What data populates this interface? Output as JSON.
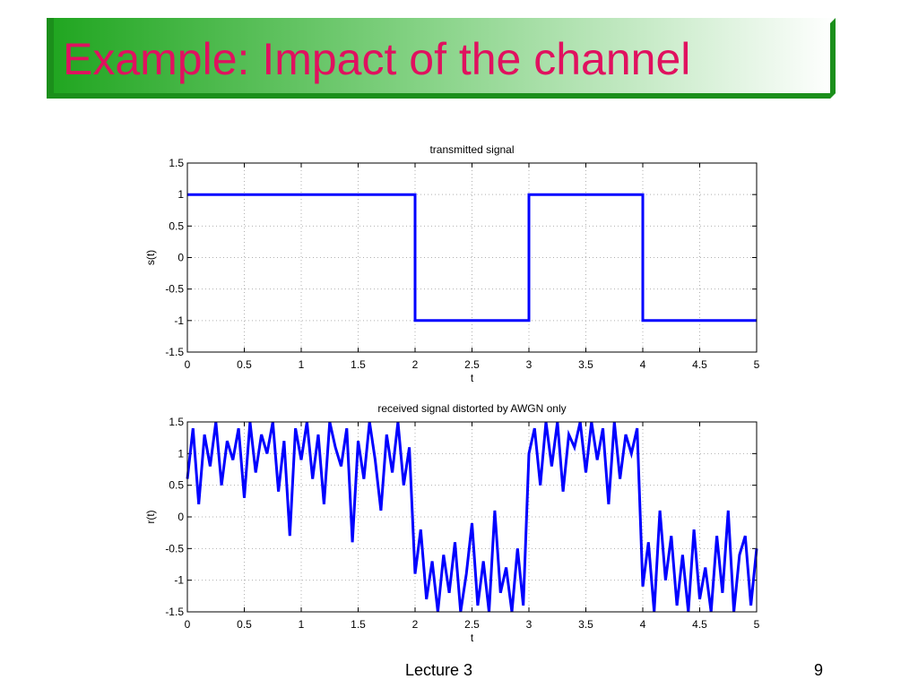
{
  "slide": {
    "title": "Example: Impact of the channel",
    "footer_left": "Lecture 3",
    "footer_right": "9",
    "title_color": "#e0115f",
    "banner_color": "#22aa22"
  },
  "chart_data": [
    {
      "type": "line",
      "title": "transmitted signal",
      "xlabel": "t",
      "ylabel": "s(t)",
      "xlim": [
        0,
        5
      ],
      "ylim": [
        -1.5,
        1.5
      ],
      "xticks": [
        "0",
        "0.5",
        "1",
        "1.5",
        "2",
        "2.5",
        "3",
        "3.5",
        "4",
        "4.5",
        "5"
      ],
      "yticks": [
        "1.5",
        "1",
        "0.5",
        "0",
        "-0.5",
        "-1",
        "-1.5"
      ],
      "grid": true,
      "line_color": "#0000ff",
      "series": [
        {
          "x": [
            0,
            2,
            2,
            3,
            3,
            4,
            4,
            5
          ],
          "y": [
            1,
            1,
            -1,
            -1,
            1,
            1,
            -1,
            -1
          ]
        }
      ]
    },
    {
      "type": "line",
      "title": "received signal distorted by AWGN only",
      "xlabel": "t",
      "ylabel": "r(t)",
      "xlim": [
        0,
        5
      ],
      "ylim": [
        -1.5,
        1.5
      ],
      "xticks": [
        "0",
        "0.5",
        "1",
        "1.5",
        "2",
        "2.5",
        "3",
        "3.5",
        "4",
        "4.5",
        "5"
      ],
      "yticks": [
        "1.5",
        "1",
        "0.5",
        "0",
        "-0.5",
        "-1",
        "-1.5"
      ],
      "grid": true,
      "line_color": "#0000ff",
      "series": [
        {
          "x": [
            0,
            0.05,
            0.1,
            0.15,
            0.2,
            0.25,
            0.3,
            0.35,
            0.4,
            0.45,
            0.5,
            0.55,
            0.6,
            0.65,
            0.7,
            0.75,
            0.8,
            0.85,
            0.9,
            0.95,
            1,
            1.05,
            1.1,
            1.15,
            1.2,
            1.25,
            1.3,
            1.35,
            1.4,
            1.45,
            1.5,
            1.55,
            1.6,
            1.65,
            1.7,
            1.75,
            1.8,
            1.85,
            1.9,
            1.95,
            2,
            2.05,
            2.1,
            2.15,
            2.2,
            2.25,
            2.3,
            2.35,
            2.4,
            2.45,
            2.5,
            2.55,
            2.6,
            2.65,
            2.7,
            2.75,
            2.8,
            2.85,
            2.9,
            2.95,
            3,
            3.05,
            3.1,
            3.15,
            3.2,
            3.25,
            3.3,
            3.35,
            3.4,
            3.45,
            3.5,
            3.55,
            3.6,
            3.65,
            3.7,
            3.75,
            3.8,
            3.85,
            3.9,
            3.95,
            4,
            4.05,
            4.1,
            4.15,
            4.2,
            4.25,
            4.3,
            4.35,
            4.4,
            4.45,
            4.5,
            4.55,
            4.6,
            4.65,
            4.7,
            4.75,
            4.8,
            4.85,
            4.9,
            4.95,
            5
          ],
          "y": [
            0.6,
            1.4,
            0.2,
            1.3,
            0.8,
            1.5,
            0.5,
            1.2,
            0.9,
            1.4,
            0.3,
            1.5,
            0.7,
            1.3,
            1.0,
            1.5,
            0.4,
            1.2,
            -0.3,
            1.4,
            0.9,
            1.5,
            0.6,
            1.3,
            0.2,
            1.5,
            1.1,
            0.8,
            1.4,
            -0.4,
            1.2,
            0.6,
            1.5,
            0.9,
            0.1,
            1.3,
            0.7,
            1.5,
            0.5,
            1.1,
            -0.9,
            -0.2,
            -1.3,
            -0.7,
            -1.5,
            -0.6,
            -1.2,
            -0.4,
            -1.5,
            -0.9,
            -0.1,
            -1.4,
            -0.7,
            -1.5,
            0.1,
            -1.2,
            -0.8,
            -1.5,
            -0.5,
            -1.4,
            1.0,
            1.4,
            0.5,
            1.5,
            0.8,
            1.5,
            0.4,
            1.3,
            1.1,
            1.5,
            0.7,
            1.5,
            0.9,
            1.4,
            0.2,
            1.5,
            0.6,
            1.3,
            1.0,
            1.4,
            -1.1,
            -0.4,
            -1.5,
            0.1,
            -1.0,
            -0.3,
            -1.4,
            -0.6,
            -1.5,
            -0.2,
            -1.3,
            -0.8,
            -1.5,
            -0.3,
            -1.2,
            0.1,
            -1.5,
            -0.6,
            -0.3,
            -1.4,
            -0.5
          ]
        }
      ]
    }
  ]
}
